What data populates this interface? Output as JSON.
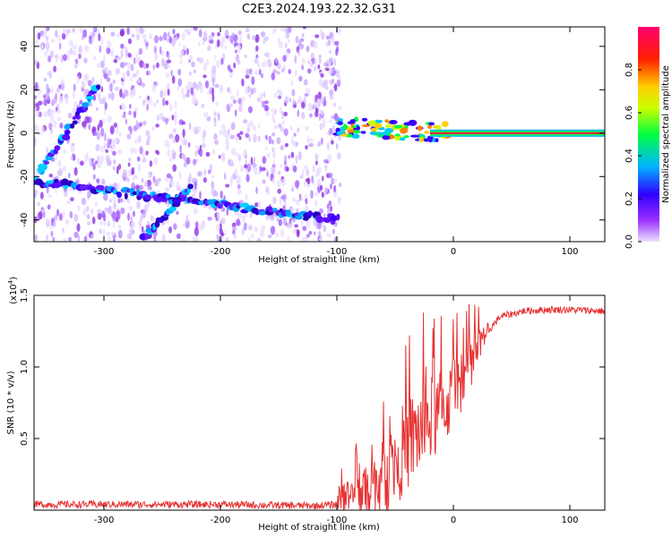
{
  "title": "C2E3.2024.193.22.32.G31",
  "chart_data": [
    {
      "type": "heatmap",
      "xlabel": "Height of straight line (km)",
      "ylabel": "Frequency (Hz)",
      "xlim": [
        -360,
        130
      ],
      "ylim": [
        -50,
        49
      ],
      "xticks": [
        -300,
        -200,
        -100,
        0,
        100
      ],
      "yticks": [
        -40,
        -20,
        0,
        20,
        40
      ],
      "colorbar": {
        "label": "Normalized spectral amplitude",
        "range": [
          0,
          1
        ],
        "ticks": [
          "0.0",
          "0.2",
          "0.4",
          "0.6",
          "0.8"
        ],
        "colors": [
          "#e6d5ff",
          "#8a2be2",
          "#3a00ff",
          "#00c8ff",
          "#00ff40",
          "#ffff00",
          "#ff8000",
          "#ff0000",
          "#ff0060"
        ]
      },
      "features": [
        {
          "name": "horizontal band",
          "x": [
            -360,
            -100
          ],
          "y": [
            -22,
            -40
          ]
        },
        {
          "name": "rising diagonal",
          "x": [
            -355,
            -305
          ],
          "y": [
            -18,
            22
          ]
        },
        {
          "name": "falling diagonal",
          "x": [
            -265,
            -225
          ],
          "y": [
            -48,
            -25
          ]
        },
        {
          "name": "strong constant line",
          "x": [
            -100,
            130
          ],
          "y": [
            0,
            0
          ]
        }
      ]
    },
    {
      "type": "line",
      "xlabel": "Height of straight line (km)",
      "ylabel": "SNR (10 * v/v)",
      "multiplier": "(x10",
      "multiplier_exp": "4",
      "multiplier_close": ")",
      "xlim": [
        -360,
        130
      ],
      "ylim": [
        0,
        1.5
      ],
      "xticks": [
        -300,
        -200,
        -100,
        0,
        100
      ],
      "yticks": [
        0.5,
        1.0,
        1.5
      ],
      "ytick_labels": [
        "0.5",
        "1.0",
        "1.5"
      ],
      "series": [
        {
          "color": "#e63232",
          "x": [
            -360,
            -300,
            -200,
            -120,
            -100,
            -80,
            -60,
            -50,
            -40,
            -30,
            -20,
            -10,
            0,
            10,
            20,
            30,
            40,
            60,
            80,
            100,
            130
          ],
          "y": [
            0.04,
            0.04,
            0.04,
            0.03,
            0.04,
            0.12,
            0.2,
            0.35,
            0.45,
            0.55,
            0.62,
            0.7,
            0.8,
            0.95,
            1.1,
            1.25,
            1.35,
            1.39,
            1.4,
            1.4,
            1.39
          ]
        }
      ]
    }
  ]
}
